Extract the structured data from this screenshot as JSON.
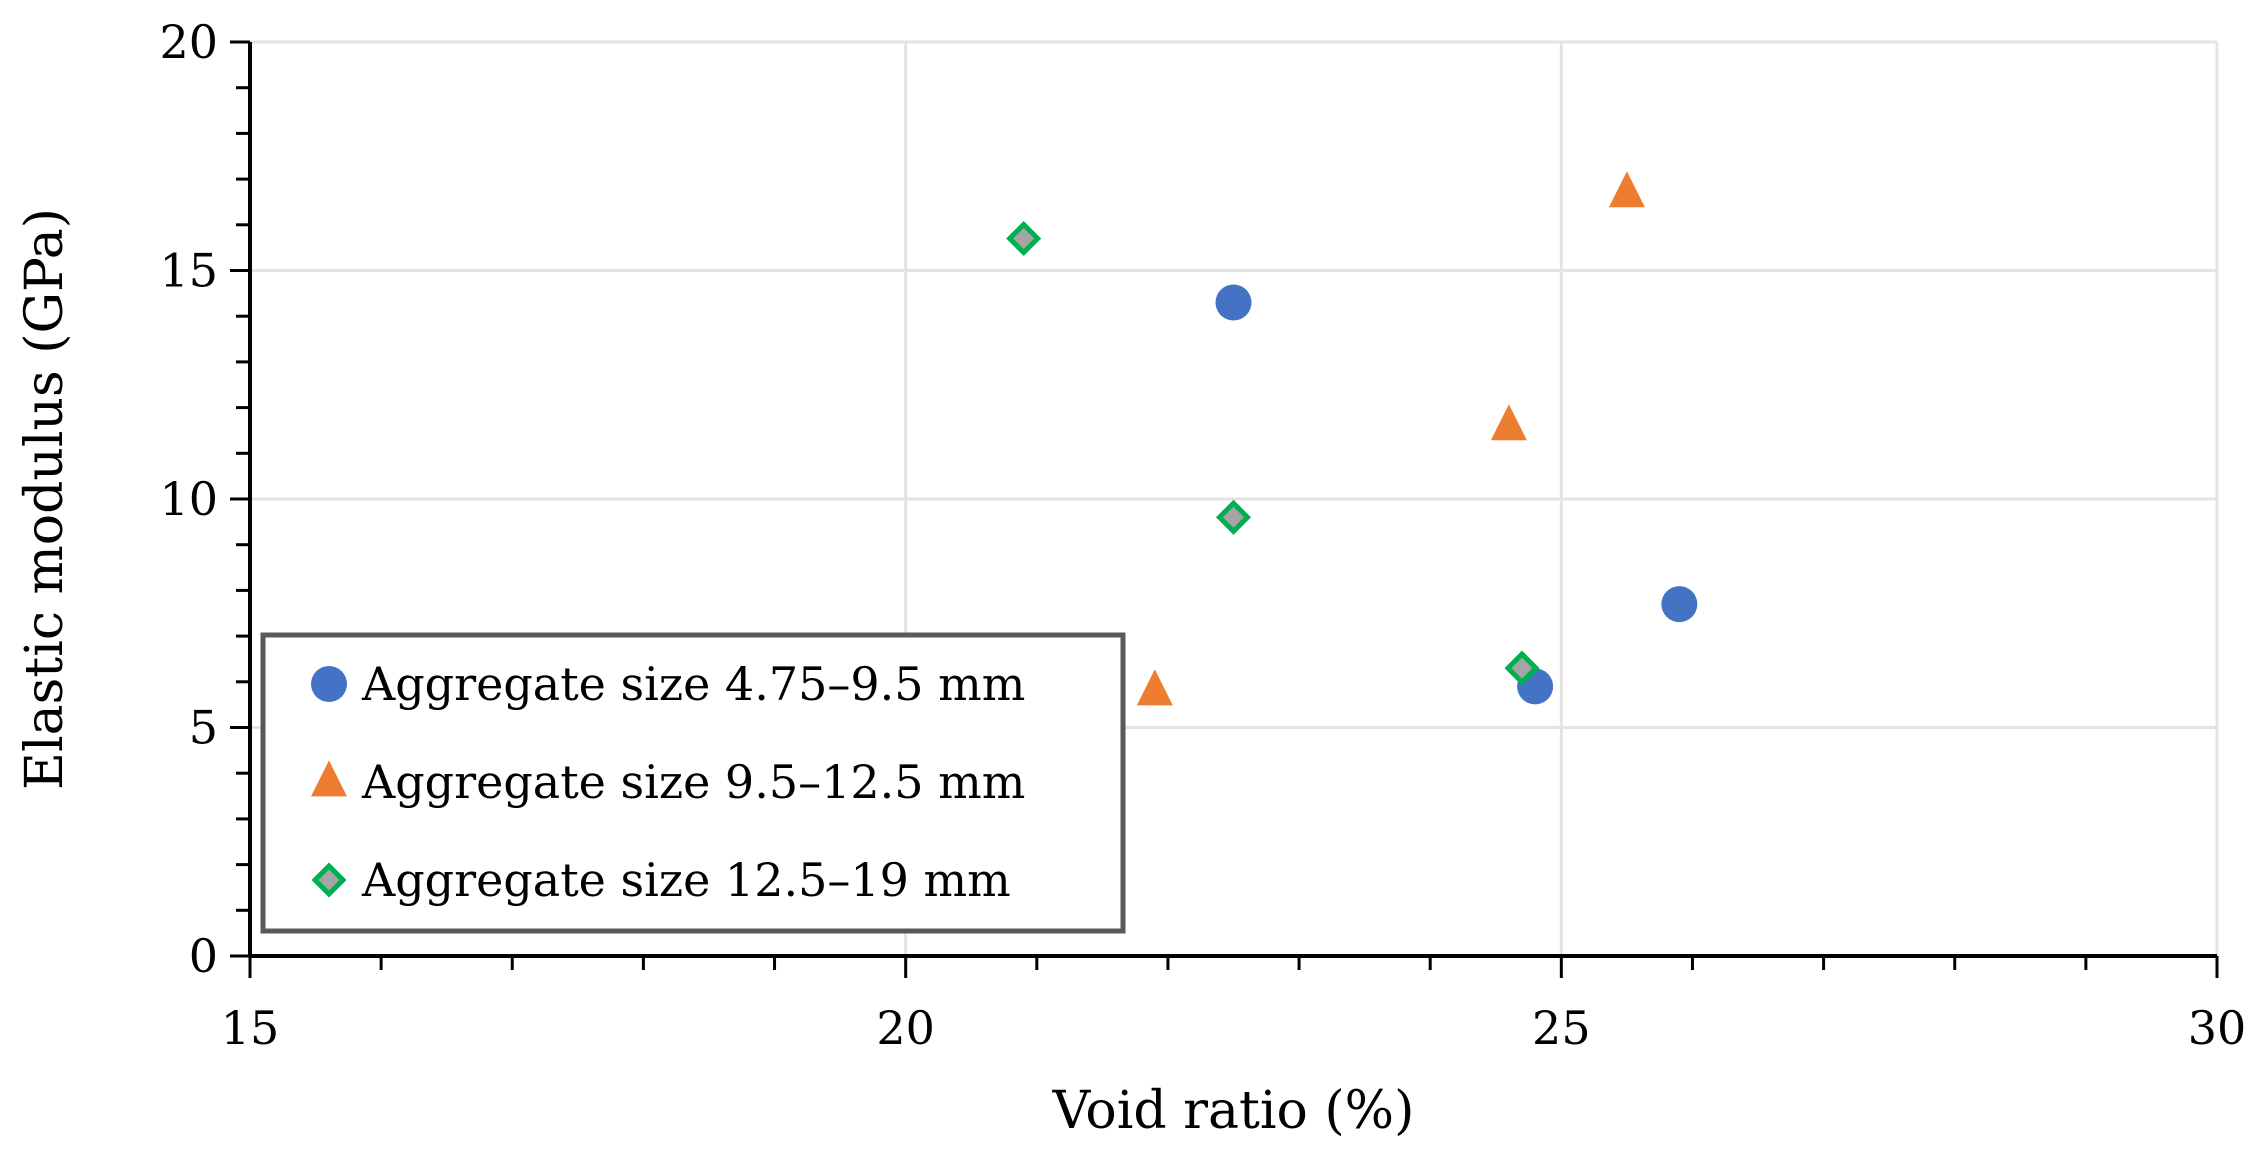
{
  "chart_data": {
    "type": "scatter",
    "title": "",
    "xlabel": "Void ratio (%)",
    "ylabel": "Elastic modulus (GPa)",
    "xlim": [
      15,
      30
    ],
    "ylim": [
      0,
      20
    ],
    "x_ticks": [
      15,
      20,
      25,
      30
    ],
    "y_ticks": [
      0,
      5,
      10,
      15,
      20
    ],
    "x_tick_labels": [
      "15",
      "20",
      "25",
      "30"
    ],
    "y_tick_labels": [
      "0",
      "5",
      "10",
      "15",
      "20"
    ],
    "grid": true,
    "legend_position": "bottom-left",
    "series": [
      {
        "name": "Aggregate size 4.75–9.5 mm",
        "marker": "circle",
        "color": "#4472C4",
        "points": [
          [
            22.5,
            14.3
          ],
          [
            24.8,
            5.9
          ],
          [
            25.9,
            7.7
          ]
        ]
      },
      {
        "name": "Aggregate size 9.5–12.5 mm",
        "marker": "triangle",
        "color": "#ED7D31",
        "points": [
          [
            21.9,
            5.8
          ],
          [
            24.6,
            11.6
          ],
          [
            25.5,
            16.7
          ]
        ]
      },
      {
        "name": "Aggregate size 12.5–19 mm",
        "marker": "diamond",
        "color": "#00B050",
        "fill": "#A5A5A5",
        "points": [
          [
            20.9,
            15.7
          ],
          [
            22.5,
            9.6
          ],
          [
            24.7,
            6.3
          ]
        ]
      }
    ]
  }
}
